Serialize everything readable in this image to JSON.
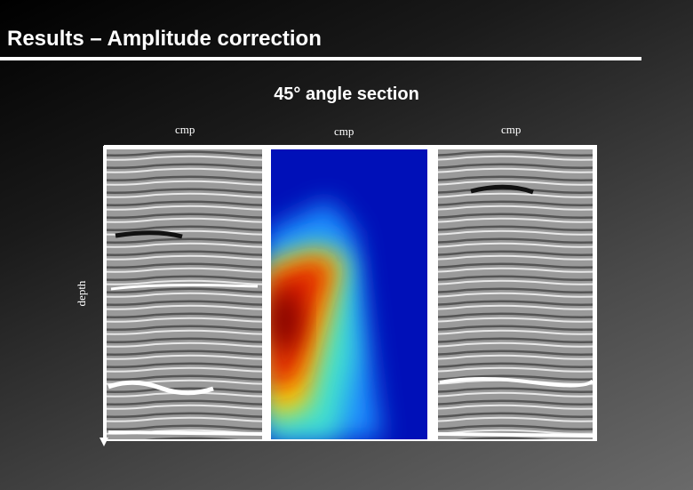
{
  "slide": {
    "title": "Results – Amplitude correction",
    "subtitle": "45° angle section",
    "panel_labels": [
      "cmp",
      "cmp",
      "cmp"
    ],
    "axis_label": "depth"
  }
}
